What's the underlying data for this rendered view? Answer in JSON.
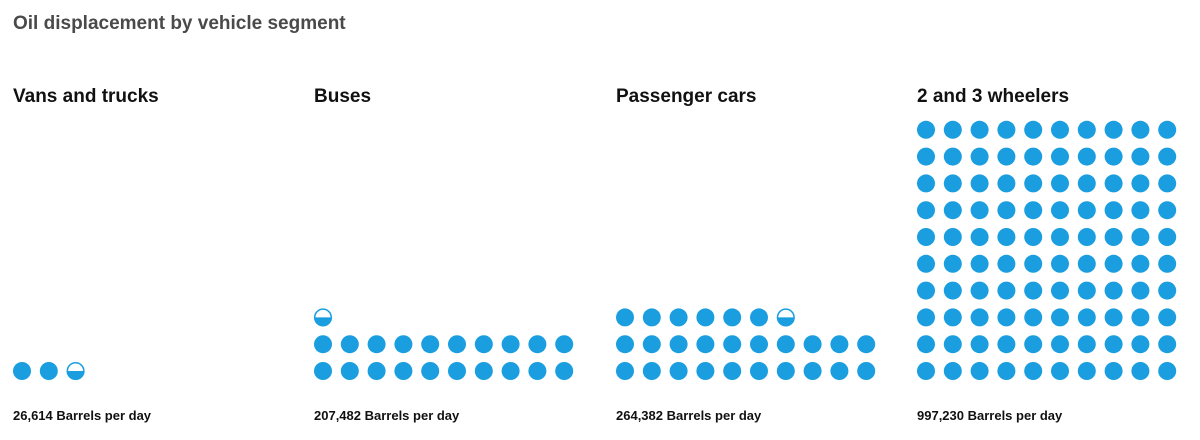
{
  "title": "Oil displacement by vehicle segment",
  "colors": {
    "dot": "#1a9ee0",
    "empty": "#ffffff"
  },
  "chart_data": [
    {
      "type": "pictogram",
      "title": "Vans and trucks",
      "value": 26614,
      "value_label": "26,614 Barrels per day",
      "dots": 2.5,
      "unit_per_dot": 10000
    },
    {
      "type": "pictogram",
      "title": "Buses",
      "value": 207482,
      "value_label": "207,482 Barrels per day",
      "dots": 20.5,
      "unit_per_dot": 10000
    },
    {
      "type": "pictogram",
      "title": "Passenger cars",
      "value": 264382,
      "value_label": "264,382 Barrels per day",
      "dots": 26.5,
      "unit_per_dot": 10000
    },
    {
      "type": "pictogram",
      "title": "2 and 3 wheelers",
      "value": 997230,
      "value_label": "997,230 Barrels per day",
      "dots": 100,
      "unit_per_dot": 10000
    }
  ]
}
